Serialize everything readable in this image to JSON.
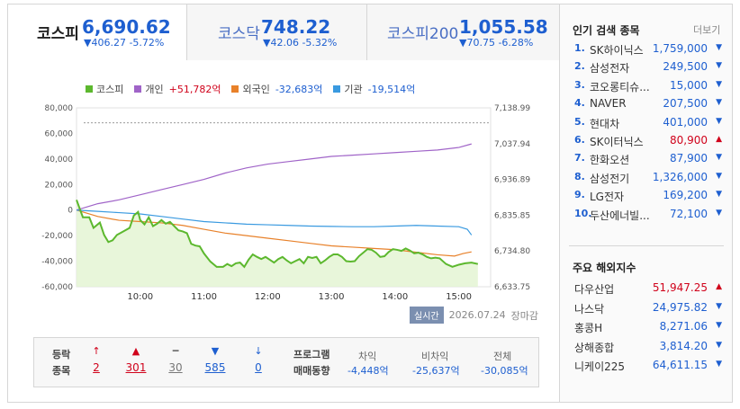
{
  "tabs": [
    {
      "name": "코스피",
      "value": "6,690.62",
      "change": "▼406.27 -5.72%"
    },
    {
      "name": "코스닥",
      "value": "748.22",
      "change": "▼42.06 -5.32%"
    },
    {
      "name": "코스피200",
      "value": "1,055.58",
      "change": "▼70.75 -6.28%"
    }
  ],
  "legend": [
    {
      "name": "코스피",
      "value": "",
      "color": "#5cb82e"
    },
    {
      "name": "개인",
      "value": "+51,782억",
      "color": "#a064c8",
      "value_color": "#d0021b"
    },
    {
      "name": "외국인",
      "value": "-32,683억",
      "color": "#e8812a",
      "value_color": "#1e5fd0"
    },
    {
      "name": "기관",
      "value": "-19,514억",
      "color": "#3a9ae0",
      "value_color": "#1e5fd0"
    }
  ],
  "chart_data": {
    "type": "line",
    "x_ticks": [
      "10:00",
      "11:00",
      "12:00",
      "13:00",
      "14:00",
      "15:00"
    ],
    "y_left_ticks": [
      "80,000",
      "60,000",
      "40,000",
      "20,000",
      "0",
      "-20,000",
      "-40,000",
      "-60,000"
    ],
    "y_left_range": [
      -60000,
      80000
    ],
    "y_right_ticks": [
      "7,138.99",
      "7,037.94",
      "6,936.89",
      "6,835.85",
      "6,734.80",
      "6,633.75"
    ],
    "y_right_range": [
      6633.75,
      7138.99
    ],
    "x_range_minutes": [
      540,
      930
    ],
    "reference_line_value": 7096.89,
    "series": [
      {
        "name": "코스피",
        "axis": "right",
        "color": "#5cb82e",
        "fill": "#e6f5d6",
        "points": [
          [
            540,
            6879
          ],
          [
            546,
            6830
          ],
          [
            552,
            6830
          ],
          [
            556,
            6800
          ],
          [
            562,
            6815
          ],
          [
            566,
            6780
          ],
          [
            570,
            6760
          ],
          [
            574,
            6765
          ],
          [
            578,
            6780
          ],
          [
            584,
            6790
          ],
          [
            590,
            6800
          ],
          [
            594,
            6835
          ],
          [
            598,
            6845
          ],
          [
            600,
            6822
          ],
          [
            604,
            6810
          ],
          [
            608,
            6830
          ],
          [
            612,
            6805
          ],
          [
            616,
            6812
          ],
          [
            620,
            6822
          ],
          [
            624,
            6812
          ],
          [
            628,
            6817
          ],
          [
            632,
            6805
          ],
          [
            636,
            6793
          ],
          [
            640,
            6790
          ],
          [
            644,
            6785
          ],
          [
            648,
            6755
          ],
          [
            652,
            6750
          ],
          [
            656,
            6748
          ],
          [
            660,
            6728
          ],
          [
            666,
            6705
          ],
          [
            672,
            6690
          ],
          [
            678,
            6690
          ],
          [
            682,
            6698
          ],
          [
            686,
            6692
          ],
          [
            690,
            6700
          ],
          [
            694,
            6702
          ],
          [
            698,
            6690
          ],
          [
            702,
            6710
          ],
          [
            706,
            6725
          ],
          [
            710,
            6718
          ],
          [
            714,
            6712
          ],
          [
            718,
            6718
          ],
          [
            722,
            6710
          ],
          [
            726,
            6702
          ],
          [
            730,
            6712
          ],
          [
            734,
            6718
          ],
          [
            738,
            6708
          ],
          [
            742,
            6700
          ],
          [
            746,
            6706
          ],
          [
            750,
            6712
          ],
          [
            754,
            6700
          ],
          [
            758,
            6718
          ],
          [
            762,
            6715
          ],
          [
            766,
            6718
          ],
          [
            770,
            6700
          ],
          [
            774,
            6708
          ],
          [
            778,
            6718
          ],
          [
            782,
            6725
          ],
          [
            786,
            6725
          ],
          [
            790,
            6718
          ],
          [
            794,
            6706
          ],
          [
            798,
            6705
          ],
          [
            802,
            6706
          ],
          [
            806,
            6720
          ],
          [
            810,
            6730
          ],
          [
            814,
            6740
          ],
          [
            818,
            6738
          ],
          [
            822,
            6730
          ],
          [
            826,
            6718
          ],
          [
            830,
            6720
          ],
          [
            834,
            6732
          ],
          [
            838,
            6740
          ],
          [
            842,
            6738
          ],
          [
            846,
            6735
          ],
          [
            850,
            6742
          ],
          [
            854,
            6736
          ],
          [
            858,
            6728
          ],
          [
            862,
            6730
          ],
          [
            866,
            6725
          ],
          [
            870,
            6718
          ],
          [
            874,
            6714
          ],
          [
            878,
            6716
          ],
          [
            882,
            6714
          ],
          [
            888,
            6698
          ],
          [
            894,
            6690
          ],
          [
            900,
            6696
          ],
          [
            906,
            6700
          ],
          [
            912,
            6702
          ],
          [
            918,
            6698
          ]
        ]
      },
      {
        "name": "개인",
        "axis": "left",
        "color": "#a064c8",
        "points": [
          [
            540,
            0
          ],
          [
            560,
            5000
          ],
          [
            580,
            8000
          ],
          [
            600,
            12000
          ],
          [
            620,
            16000
          ],
          [
            640,
            20000
          ],
          [
            660,
            24000
          ],
          [
            680,
            29000
          ],
          [
            700,
            33000
          ],
          [
            720,
            36000
          ],
          [
            740,
            38000
          ],
          [
            760,
            40000
          ],
          [
            780,
            42000
          ],
          [
            800,
            43000
          ],
          [
            820,
            44000
          ],
          [
            840,
            45000
          ],
          [
            860,
            46000
          ],
          [
            880,
            47000
          ],
          [
            900,
            49000
          ],
          [
            912,
            51782
          ]
        ]
      },
      {
        "name": "외국인",
        "axis": "left",
        "color": "#e8812a",
        "points": [
          [
            540,
            0
          ],
          [
            560,
            -5000
          ],
          [
            580,
            -8000
          ],
          [
            600,
            -9000
          ],
          [
            620,
            -10000
          ],
          [
            640,
            -12000
          ],
          [
            660,
            -15000
          ],
          [
            680,
            -18000
          ],
          [
            700,
            -20000
          ],
          [
            720,
            -22000
          ],
          [
            740,
            -24000
          ],
          [
            760,
            -26000
          ],
          [
            780,
            -28000
          ],
          [
            800,
            -29000
          ],
          [
            820,
            -30000
          ],
          [
            840,
            -31000
          ],
          [
            860,
            -33000
          ],
          [
            880,
            -35000
          ],
          [
            896,
            -36000
          ],
          [
            904,
            -34000
          ],
          [
            912,
            -32683
          ]
        ]
      },
      {
        "name": "기관",
        "axis": "left",
        "color": "#3a9ae0",
        "points": [
          [
            540,
            0
          ],
          [
            560,
            -1000
          ],
          [
            580,
            -2000
          ],
          [
            600,
            -3000
          ],
          [
            620,
            -5000
          ],
          [
            640,
            -7000
          ],
          [
            660,
            -9000
          ],
          [
            680,
            -10000
          ],
          [
            700,
            -11000
          ],
          [
            720,
            -11500
          ],
          [
            740,
            -12000
          ],
          [
            760,
            -12500
          ],
          [
            780,
            -12800
          ],
          [
            800,
            -13000
          ],
          [
            820,
            -13000
          ],
          [
            840,
            -12500
          ],
          [
            860,
            -12000
          ],
          [
            880,
            -12500
          ],
          [
            900,
            -13000
          ],
          [
            908,
            -15000
          ],
          [
            912,
            -19514
          ]
        ]
      }
    ]
  },
  "realtime": {
    "badge": "실시간",
    "date": "2026.07.24",
    "status": "장마감"
  },
  "breadth": {
    "label_line1": "등락",
    "label_line2": "종목",
    "items": [
      {
        "icon": "↑",
        "num": "2",
        "color": "#d0021b"
      },
      {
        "icon": "▲",
        "num": "301",
        "color": "#d0021b"
      },
      {
        "icon": "━",
        "num": "30",
        "color": "#777"
      },
      {
        "icon": "▼",
        "num": "585",
        "color": "#1e5fd0"
      },
      {
        "icon": "↓",
        "num": "0",
        "color": "#1e5fd0"
      }
    ]
  },
  "program": {
    "label_line1": "프로그램",
    "label_line2": "매매동향",
    "cols": [
      {
        "head": "차익",
        "val": "-4,448억"
      },
      {
        "head": "비차익",
        "val": "-25,637억"
      },
      {
        "head": "전체",
        "val": "-30,085억"
      }
    ]
  },
  "popular": {
    "title": "인기 검색 종목",
    "more": "더보기",
    "items": [
      {
        "rank": "1.",
        "name": "SK하이닉스",
        "price": "1,759,000",
        "dir": "down"
      },
      {
        "rank": "2.",
        "name": "삼성전자",
        "price": "249,500",
        "dir": "down"
      },
      {
        "rank": "3.",
        "name": "코오롱티슈...",
        "price": "15,000",
        "dir": "down"
      },
      {
        "rank": "4.",
        "name": "NAVER",
        "price": "207,500",
        "dir": "down"
      },
      {
        "rank": "5.",
        "name": "현대차",
        "price": "401,000",
        "dir": "down"
      },
      {
        "rank": "6.",
        "name": "SK이터닉스",
        "price": "80,900",
        "dir": "up"
      },
      {
        "rank": "7.",
        "name": "한화오션",
        "price": "87,900",
        "dir": "down"
      },
      {
        "rank": "8.",
        "name": "삼성전기",
        "price": "1,326,000",
        "dir": "down"
      },
      {
        "rank": "9.",
        "name": "LG전자",
        "price": "169,200",
        "dir": "down"
      },
      {
        "rank": "10.",
        "name": "두산에너빌...",
        "price": "72,100",
        "dir": "down"
      }
    ]
  },
  "world": {
    "title": "주요 해외지수",
    "items": [
      {
        "name": "다우산업",
        "value": "51,947.25",
        "dir": "up"
      },
      {
        "name": "나스닥",
        "value": "24,975.82",
        "dir": "down"
      },
      {
        "name": "홍콩H",
        "value": "8,271.06",
        "dir": "down"
      },
      {
        "name": "상해종합",
        "value": "3,814.20",
        "dir": "down"
      },
      {
        "name": "니케이225",
        "value": "64,611.15",
        "dir": "down"
      }
    ]
  }
}
